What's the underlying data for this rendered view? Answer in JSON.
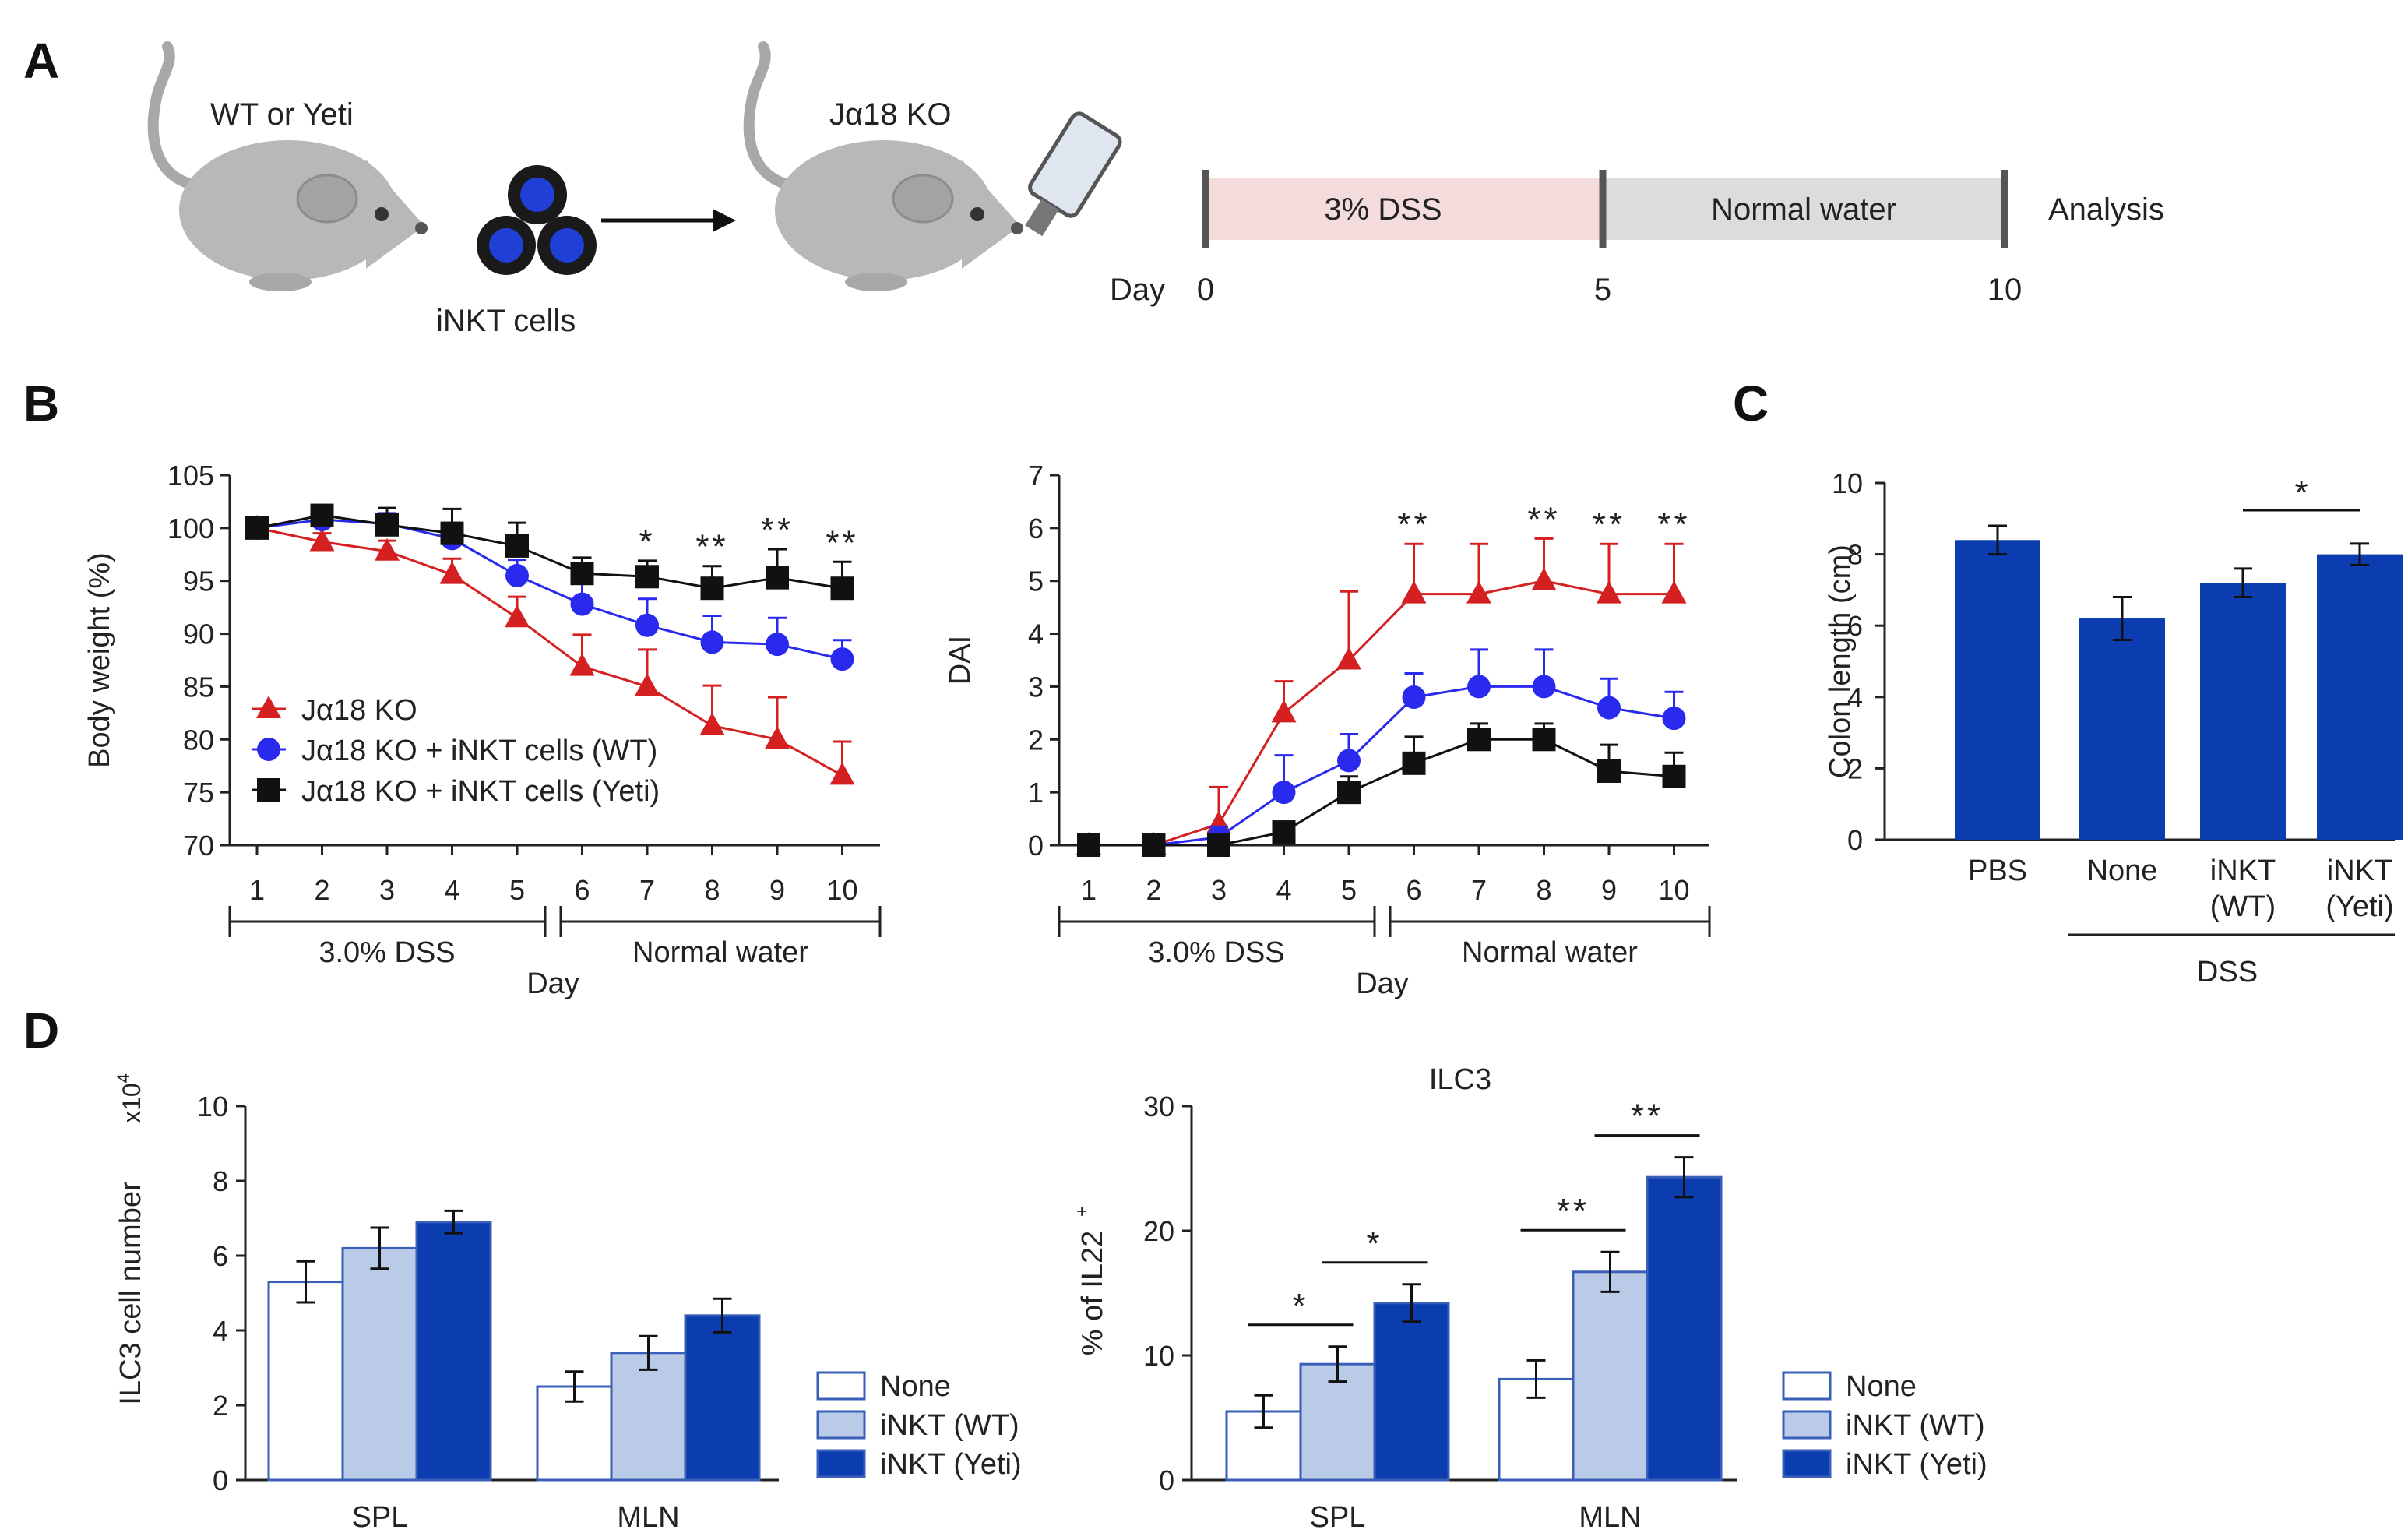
{
  "panels": {
    "a": "A",
    "b": "B",
    "c": "C",
    "d": "D"
  },
  "schematic": {
    "donor_label": "WT or  Yeti",
    "cells_label": "iNKT cells",
    "recipient_label": "Jα18 KO",
    "dss_phase": "3% DSS",
    "water_phase": "Normal water",
    "analysis": "Analysis",
    "day_label": "Day",
    "timeline_ticks": [
      "0",
      "5",
      "10"
    ],
    "colors": {
      "dss": "#f5dcdc",
      "water": "#dcdcdc",
      "mouse": "#b8b8b8",
      "cell": "#1f3fd6"
    }
  },
  "phase_labels": {
    "dss": "3.0% DSS",
    "water": "Normal water",
    "day": "Day"
  },
  "chart_data": [
    {
      "id": "body_weight",
      "type": "line",
      "title": "",
      "xlabel": "Day",
      "ylabel": "Body weight (%)",
      "x": [
        1,
        2,
        3,
        4,
        5,
        6,
        7,
        8,
        9,
        10
      ],
      "x_ticks": [
        "1",
        "2",
        "3",
        "4",
        "5",
        "6",
        "7",
        "8",
        "9",
        "10"
      ],
      "ylim": [
        70,
        105
      ],
      "y_ticks": [
        "70",
        "75",
        "80",
        "85",
        "90",
        "95",
        "100",
        "105"
      ],
      "series": [
        {
          "name": "Jα18 KO",
          "color": "#d42020",
          "marker": "triangle",
          "values": [
            100,
            98.7,
            97.8,
            95.6,
            91.5,
            86.9,
            85,
            81.3,
            80,
            76.6
          ],
          "errors": [
            0.5,
            0.8,
            1.0,
            1.5,
            2.0,
            3.0,
            3.5,
            3.8,
            4.0,
            3.2
          ]
        },
        {
          "name": "Jα18 KO + iNKT cells (WT)",
          "color": "#2a2aef",
          "marker": "circle",
          "values": [
            100,
            100.8,
            100.4,
            99,
            95.5,
            92.8,
            90.8,
            89.2,
            89,
            87.6
          ],
          "errors": [
            0.5,
            0.8,
            1.0,
            1.5,
            1.5,
            2.0,
            2.5,
            2.5,
            2.5,
            1.8
          ]
        },
        {
          "name": "Jα18 KO + iNKT cells (Yeti)",
          "color": "#111111",
          "marker": "square",
          "values": [
            100,
            101.2,
            100.3,
            99.5,
            98.3,
            95.7,
            95.4,
            94.3,
            95.3,
            94.3
          ],
          "errors": [
            0.5,
            0.8,
            1.6,
            2.3,
            2.2,
            1.5,
            1.5,
            2.1,
            2.7,
            2.5
          ]
        }
      ],
      "annotations": [
        {
          "x": 7,
          "text": "*"
        },
        {
          "x": 8,
          "text": "**"
        },
        {
          "x": 9,
          "text": "**"
        },
        {
          "x": 10,
          "text": "**"
        }
      ]
    },
    {
      "id": "dai",
      "type": "line",
      "title": "",
      "xlabel": "Day",
      "ylabel": "DAI",
      "x": [
        1,
        2,
        3,
        4,
        5,
        6,
        7,
        8,
        9,
        10
      ],
      "x_ticks": [
        "1",
        "2",
        "3",
        "4",
        "5",
        "6",
        "7",
        "8",
        "9",
        "10"
      ],
      "ylim": [
        0,
        7
      ],
      "y_ticks": [
        "0",
        "1",
        "2",
        "3",
        "4",
        "5",
        "6",
        "7"
      ],
      "series": [
        {
          "name": "Jα18 KO",
          "color": "#d42020",
          "marker": "triangle",
          "values": [
            0,
            0,
            0.4,
            2.5,
            3.5,
            4.75,
            4.75,
            5,
            4.75,
            4.75
          ],
          "errors": [
            0,
            0,
            0.7,
            0.6,
            1.3,
            0.95,
            0.95,
            0.8,
            0.95,
            0.95
          ]
        },
        {
          "name": "Jα18 KO + iNKT cells (WT)",
          "color": "#2a2aef",
          "marker": "circle",
          "values": [
            0,
            0,
            0.15,
            1,
            1.6,
            2.8,
            3,
            3,
            2.6,
            2.4
          ],
          "errors": [
            0,
            0,
            0.2,
            0.7,
            0.5,
            0.45,
            0.7,
            0.7,
            0.55,
            0.5
          ]
        },
        {
          "name": "Jα18 KO + iNKT cells (Yeti)",
          "color": "#111111",
          "marker": "square",
          "values": [
            0,
            0,
            0,
            0.25,
            1,
            1.55,
            2,
            2,
            1.4,
            1.3
          ],
          "errors": [
            0,
            0,
            0,
            0.15,
            0.3,
            0.5,
            0.3,
            0.3,
            0.5,
            0.45
          ]
        }
      ],
      "annotations": [
        {
          "x": 6,
          "text": "**"
        },
        {
          "x": 8,
          "text": "**"
        },
        {
          "x": 9,
          "text": "**"
        },
        {
          "x": 10,
          "text": "**"
        }
      ]
    },
    {
      "id": "colon_length",
      "type": "bar",
      "title": "",
      "xlabel": "",
      "ylabel": "Colon length (cm)",
      "categories": [
        "PBS",
        "None",
        "iNKT\n(WT)",
        "iNKT\n(Yeti)"
      ],
      "values": [
        8.4,
        6.2,
        7.2,
        8.0
      ],
      "errors": [
        0.4,
        0.6,
        0.4,
        0.3
      ],
      "ylim": [
        0,
        10
      ],
      "y_ticks": [
        "0",
        "2",
        "4",
        "6",
        "8",
        "10"
      ],
      "group_label": "DSS",
      "color": "#0b3db0",
      "significance": [
        {
          "from": 2,
          "to": 3,
          "text": "*"
        }
      ]
    },
    {
      "id": "ilc3_number",
      "type": "bar",
      "title": "",
      "xlabel": "",
      "ylabel": "ILC3 cell number",
      "ylabel_unit": "x10",
      "ylabel_exp": "4",
      "categories": [
        "SPL",
        "MLN"
      ],
      "series": [
        {
          "name": "None",
          "color": "#ffffff",
          "values": [
            5.3,
            2.5
          ],
          "errors": [
            0.55,
            0.4
          ]
        },
        {
          "name": "iNKT (WT)",
          "color": "#b9cbe6",
          "values": [
            6.2,
            3.4
          ],
          "errors": [
            0.55,
            0.45
          ]
        },
        {
          "name": "iNKT (Yeti)",
          "color": "#0b3db0",
          "values": [
            6.9,
            4.4
          ],
          "errors": [
            0.3,
            0.45
          ]
        }
      ],
      "ylim": [
        0,
        10
      ],
      "y_ticks": [
        "0",
        "2",
        "4",
        "6",
        "8",
        "10"
      ]
    },
    {
      "id": "il22_percent",
      "type": "bar",
      "title": "ILC3",
      "xlabel": "",
      "ylabel": "% of IL22",
      "ylabel_sup": "+",
      "categories": [
        "SPL",
        "MLN"
      ],
      "series": [
        {
          "name": "None",
          "color": "#ffffff",
          "values": [
            5.5,
            8.1
          ],
          "errors": [
            1.3,
            1.5
          ]
        },
        {
          "name": "iNKT (WT)",
          "color": "#b9cbe6",
          "values": [
            9.3,
            16.7
          ],
          "errors": [
            1.4,
            1.6
          ]
        },
        {
          "name": "iNKT (Yeti)",
          "color": "#0b3db0",
          "values": [
            14.2,
            24.3
          ],
          "errors": [
            1.5,
            1.6
          ]
        }
      ],
      "ylim": [
        0,
        30
      ],
      "y_ticks": [
        "0",
        "10",
        "20",
        "30"
      ],
      "significance": [
        {
          "group": 0,
          "from": 0,
          "to": 1,
          "text": "*"
        },
        {
          "group": 0,
          "from": 1,
          "to": 2,
          "text": "*"
        },
        {
          "group": 1,
          "from": 0,
          "to": 1,
          "text": "**"
        },
        {
          "group": 1,
          "from": 1,
          "to": 2,
          "text": "**"
        }
      ]
    }
  ]
}
